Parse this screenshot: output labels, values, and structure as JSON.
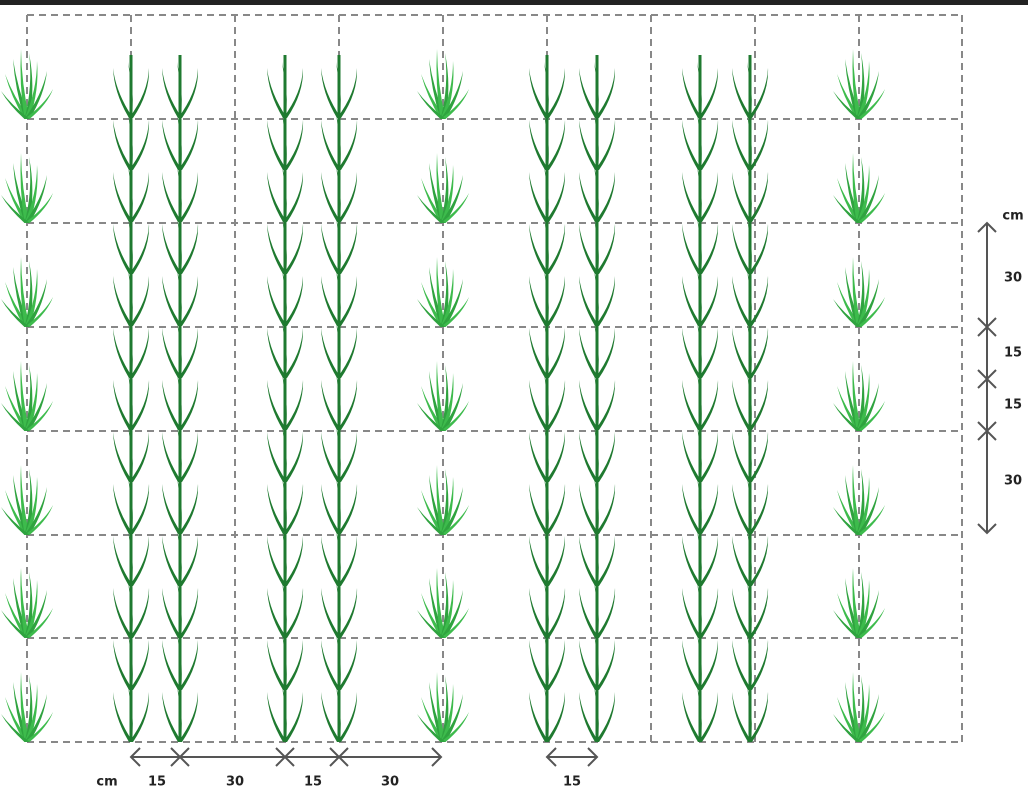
{
  "bottom_scale": {
    "unit": "cm",
    "spacings": [
      "15",
      "30",
      "15",
      "30",
      "15"
    ]
  },
  "side_scale": {
    "unit": "cm",
    "spacings": [
      "30",
      "15",
      "15",
      "30"
    ]
  }
}
